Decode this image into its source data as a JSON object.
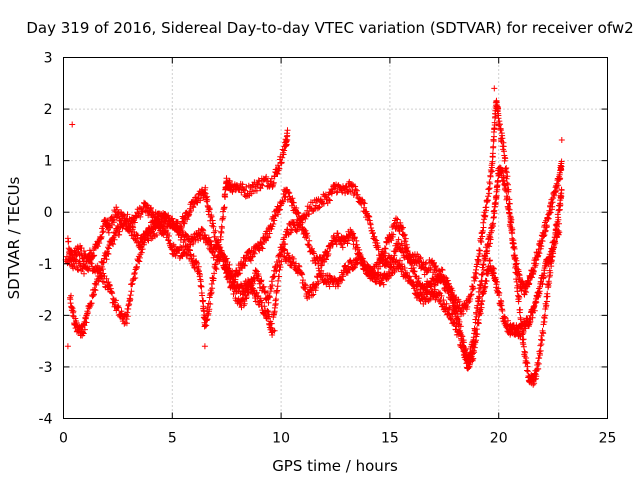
{
  "chart_data": {
    "type": "scatter",
    "title": "Day 319 of 2016, Sidereal Day-to-day VTEC variation (SDTVAR) for receiver ofw2",
    "xlabel": "GPS time / hours",
    "ylabel": "SDTVAR / TECUs",
    "xlim": [
      0,
      25
    ],
    "ylim": [
      -4,
      3
    ],
    "xticks": [
      "0",
      "5",
      "10",
      "15",
      "20",
      "25"
    ],
    "yticks": [
      "-4",
      "-3",
      "-2",
      "-1",
      "0",
      "1",
      "2",
      "3"
    ],
    "grid": true,
    "marker": "+",
    "color": "#ff0000",
    "series_trajectories": [
      [
        [
          0.2,
          -0.6
        ],
        [
          0.4,
          -0.9
        ],
        [
          0.7,
          -0.7
        ],
        [
          1.0,
          -0.9
        ],
        [
          1.3,
          -0.8
        ],
        [
          1.6,
          -0.6
        ],
        [
          1.9,
          -0.2
        ],
        [
          2.1,
          -0.3
        ],
        [
          2.4,
          0.0
        ],
        [
          2.7,
          -0.1
        ],
        [
          3.0,
          -0.3
        ],
        [
          3.3,
          -0.1
        ],
        [
          3.7,
          0.1
        ],
        [
          4.0,
          0.0
        ],
        [
          4.3,
          -0.1
        ],
        [
          4.6,
          -0.1
        ],
        [
          4.9,
          -0.2
        ],
        [
          5.2,
          -0.3
        ],
        [
          5.5,
          -0.5
        ],
        [
          5.8,
          -0.6
        ],
        [
          6.1,
          -0.5
        ],
        [
          6.4,
          -0.4
        ],
        [
          6.7,
          -0.6
        ],
        [
          6.9,
          -0.8
        ],
        [
          7.2,
          -0.6
        ],
        [
          7.4,
          0.2
        ],
        [
          7.5,
          0.6
        ],
        [
          7.7,
          0.5
        ],
        [
          8.0,
          0.5
        ],
        [
          8.4,
          0.4
        ],
        [
          8.8,
          0.5
        ],
        [
          9.2,
          0.6
        ],
        [
          9.6,
          0.6
        ],
        [
          9.9,
          0.9
        ],
        [
          10.2,
          1.3
        ],
        [
          10.3,
          1.5
        ]
      ],
      [
        [
          0.1,
          -0.9
        ],
        [
          0.5,
          -1.0
        ],
        [
          0.9,
          -1.1
        ],
        [
          1.2,
          -1.0
        ],
        [
          1.6,
          -1.1
        ],
        [
          2.0,
          -1.4
        ],
        [
          2.3,
          -1.7
        ],
        [
          2.6,
          -2.0
        ],
        [
          2.9,
          -2.1
        ],
        [
          3.1,
          -1.5
        ],
        [
          3.4,
          -1.0
        ],
        [
          3.7,
          -0.5
        ],
        [
          4.0,
          -0.3
        ],
        [
          4.3,
          -0.2
        ],
        [
          4.6,
          -0.2
        ],
        [
          5.0,
          -0.2
        ],
        [
          5.3,
          -0.3
        ],
        [
          5.6,
          -0.1
        ],
        [
          5.9,
          0.1
        ],
        [
          6.2,
          0.3
        ],
        [
          6.5,
          0.4
        ],
        [
          6.7,
          0.0
        ],
        [
          7.0,
          -0.5
        ],
        [
          7.3,
          -0.9
        ],
        [
          7.6,
          -1.2
        ],
        [
          7.9,
          -1.4
        ],
        [
          8.2,
          -1.5
        ],
        [
          8.5,
          -1.4
        ],
        [
          8.8,
          -1.6
        ],
        [
          9.1,
          -1.8
        ],
        [
          9.4,
          -2.0
        ],
        [
          9.6,
          -2.3
        ],
        [
          9.8,
          -1.5
        ],
        [
          10.1,
          -0.6
        ],
        [
          10.4,
          -0.3
        ],
        [
          10.7,
          -0.3
        ],
        [
          11.0,
          -0.1
        ],
        [
          11.4,
          0.1
        ],
        [
          11.8,
          0.2
        ],
        [
          12.2,
          0.3
        ],
        [
          12.5,
          0.5
        ],
        [
          12.9,
          0.4
        ],
        [
          13.2,
          0.5
        ],
        [
          13.6,
          0.3
        ],
        [
          13.9,
          0.0
        ],
        [
          14.2,
          -0.4
        ],
        [
          14.5,
          -0.8
        ],
        [
          14.8,
          -1.0
        ],
        [
          15.1,
          -0.9
        ],
        [
          15.4,
          -0.6
        ],
        [
          15.7,
          -0.8
        ],
        [
          16.0,
          -0.9
        ],
        [
          16.3,
          -0.9
        ],
        [
          16.6,
          -1.1
        ],
        [
          16.9,
          -1.0
        ],
        [
          17.2,
          -1.2
        ],
        [
          17.5,
          -1.4
        ],
        [
          17.8,
          -1.6
        ],
        [
          18.0,
          -1.9
        ],
        [
          18.2,
          -2.2
        ],
        [
          18.4,
          -2.6
        ],
        [
          18.6,
          -2.9
        ],
        [
          18.8,
          -2.6
        ],
        [
          19.0,
          -1.9
        ],
        [
          19.2,
          -1.3
        ],
        [
          19.4,
          -0.8
        ],
        [
          19.6,
          -0.5
        ],
        [
          19.8,
          0.0
        ],
        [
          19.9,
          0.4
        ],
        [
          20.0,
          0.8
        ],
        [
          20.2,
          0.7
        ],
        [
          20.4,
          0.2
        ],
        [
          20.6,
          -0.4
        ],
        [
          20.8,
          -1.0
        ],
        [
          21.0,
          -1.4
        ],
        [
          21.2,
          -1.5
        ],
        [
          21.4,
          -1.3
        ],
        [
          21.6,
          -1.1
        ],
        [
          21.8,
          -0.8
        ],
        [
          22.0,
          -0.5
        ],
        [
          22.2,
          -0.2
        ],
        [
          22.4,
          0.1
        ],
        [
          22.6,
          0.4
        ],
        [
          22.8,
          0.7
        ],
        [
          22.9,
          1.0
        ]
      ],
      [
        [
          0.3,
          -1.6
        ],
        [
          0.5,
          -2.1
        ],
        [
          0.7,
          -2.3
        ],
        [
          0.9,
          -2.3
        ],
        [
          1.1,
          -2.0
        ],
        [
          1.4,
          -1.5
        ],
        [
          1.7,
          -1.1
        ],
        [
          2.0,
          -0.8
        ],
        [
          2.3,
          -0.5
        ],
        [
          2.6,
          -0.3
        ],
        [
          2.9,
          -0.1
        ],
        [
          3.2,
          -0.4
        ],
        [
          3.5,
          -0.6
        ],
        [
          3.8,
          -0.5
        ],
        [
          4.1,
          -0.4
        ],
        [
          4.4,
          -0.3
        ],
        [
          4.7,
          -0.4
        ],
        [
          5.0,
          -0.7
        ],
        [
          5.3,
          -0.8
        ],
        [
          5.6,
          -0.7
        ],
        [
          5.9,
          -0.9
        ],
        [
          6.2,
          -1.1
        ],
        [
          6.4,
          -1.7
        ],
        [
          6.5,
          -2.2
        ],
        [
          6.7,
          -1.8
        ],
        [
          6.9,
          -1.2
        ],
        [
          7.2,
          -0.8
        ],
        [
          7.5,
          -1.0
        ],
        [
          7.8,
          -1.3
        ],
        [
          8.1,
          -1.1
        ],
        [
          8.4,
          -0.9
        ],
        [
          8.7,
          -0.8
        ],
        [
          9.0,
          -0.7
        ],
        [
          9.3,
          -0.5
        ],
        [
          9.6,
          -0.2
        ],
        [
          9.9,
          0.1
        ],
        [
          10.2,
          0.4
        ],
        [
          10.5,
          0.2
        ],
        [
          10.8,
          -0.1
        ],
        [
          11.1,
          -0.4
        ],
        [
          11.4,
          -0.8
        ],
        [
          11.7,
          -1.0
        ],
        [
          12.0,
          -0.9
        ],
        [
          12.3,
          -0.6
        ],
        [
          12.6,
          -0.5
        ],
        [
          12.9,
          -0.6
        ],
        [
          13.2,
          -0.4
        ],
        [
          13.5,
          -0.7
        ],
        [
          13.8,
          -1.0
        ],
        [
          14.1,
          -1.2
        ],
        [
          14.4,
          -1.1
        ],
        [
          14.7,
          -0.8
        ],
        [
          15.0,
          -0.5
        ],
        [
          15.3,
          -0.2
        ],
        [
          15.6,
          -0.4
        ],
        [
          15.9,
          -0.9
        ],
        [
          16.2,
          -1.3
        ],
        [
          16.5,
          -1.5
        ],
        [
          16.8,
          -1.4
        ],
        [
          17.1,
          -1.3
        ],
        [
          17.4,
          -1.2
        ],
        [
          17.7,
          -1.4
        ],
        [
          18.0,
          -1.7
        ],
        [
          18.3,
          -1.9
        ],
        [
          18.6,
          -1.8
        ],
        [
          18.9,
          -1.3
        ],
        [
          19.1,
          -0.8
        ],
        [
          19.3,
          -0.2
        ],
        [
          19.5,
          0.3
        ],
        [
          19.7,
          0.9
        ],
        [
          19.8,
          1.6
        ],
        [
          19.9,
          2.2
        ],
        [
          20.0,
          1.8
        ],
        [
          20.2,
          1.3
        ],
        [
          20.4,
          0.6
        ],
        [
          20.6,
          -0.3
        ],
        [
          20.8,
          -1.2
        ],
        [
          21.0,
          -2.0
        ],
        [
          21.2,
          -2.8
        ],
        [
          21.4,
          -3.2
        ],
        [
          21.6,
          -3.3
        ],
        [
          21.8,
          -3.0
        ],
        [
          22.0,
          -2.4
        ],
        [
          22.2,
          -1.7
        ],
        [
          22.4,
          -1.0
        ],
        [
          22.6,
          -0.4
        ],
        [
          22.8,
          0.1
        ],
        [
          22.9,
          0.4
        ]
      ],
      [
        [
          7.3,
          -0.9
        ],
        [
          7.6,
          -1.3
        ],
        [
          7.9,
          -1.6
        ],
        [
          8.2,
          -1.8
        ],
        [
          8.5,
          -1.5
        ],
        [
          8.8,
          -1.2
        ],
        [
          9.1,
          -1.4
        ],
        [
          9.4,
          -1.7
        ],
        [
          9.7,
          -1.2
        ],
        [
          10.0,
          -0.7
        ],
        [
          10.3,
          -0.9
        ],
        [
          10.6,
          -1.0
        ],
        [
          10.9,
          -1.2
        ],
        [
          11.2,
          -1.6
        ],
        [
          11.5,
          -1.5
        ],
        [
          11.8,
          -1.2
        ],
        [
          12.1,
          -1.3
        ],
        [
          12.4,
          -1.4
        ],
        [
          12.7,
          -1.3
        ],
        [
          13.0,
          -1.1
        ],
        [
          13.3,
          -1.0
        ],
        [
          13.6,
          -0.9
        ],
        [
          13.9,
          -1.1
        ],
        [
          14.2,
          -1.2
        ],
        [
          14.5,
          -1.3
        ],
        [
          14.8,
          -1.3
        ],
        [
          15.1,
          -1.1
        ],
        [
          15.4,
          -1.0
        ],
        [
          15.7,
          -1.2
        ],
        [
          16.0,
          -1.4
        ],
        [
          16.3,
          -1.6
        ],
        [
          16.6,
          -1.7
        ],
        [
          16.9,
          -1.6
        ],
        [
          17.2,
          -1.6
        ],
        [
          17.5,
          -1.8
        ],
        [
          17.8,
          -2.0
        ],
        [
          18.1,
          -2.3
        ],
        [
          18.4,
          -2.7
        ],
        [
          18.6,
          -3.0
        ],
        [
          18.8,
          -2.8
        ],
        [
          19.0,
          -2.3
        ],
        [
          19.2,
          -1.8
        ],
        [
          19.4,
          -1.3
        ],
        [
          19.6,
          -1.0
        ],
        [
          19.8,
          -1.2
        ],
        [
          20.0,
          -1.6
        ],
        [
          20.2,
          -2.0
        ],
        [
          20.4,
          -2.2
        ],
        [
          20.6,
          -2.3
        ],
        [
          20.8,
          -2.3
        ],
        [
          21.0,
          -2.3
        ],
        [
          21.2,
          -2.2
        ],
        [
          21.4,
          -2.1
        ],
        [
          21.6,
          -1.9
        ],
        [
          21.8,
          -1.6
        ],
        [
          22.0,
          -1.3
        ],
        [
          22.2,
          -1.0
        ],
        [
          22.4,
          -0.8
        ],
        [
          22.6,
          -0.5
        ],
        [
          22.8,
          -0.3
        ]
      ]
    ],
    "isolated_points": [
      [
        0.4,
        1.7
      ],
      [
        0.2,
        -2.6
      ],
      [
        19.8,
        2.4
      ],
      [
        20.1,
        1.4
      ],
      [
        22.9,
        1.4
      ],
      [
        9.7,
        -2.3
      ],
      [
        6.5,
        -2.6
      ]
    ]
  }
}
